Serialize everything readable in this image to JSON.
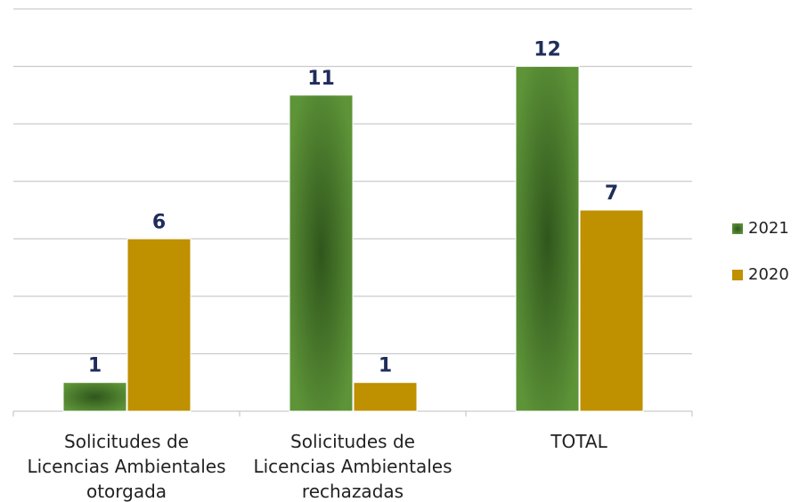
{
  "chart_data": {
    "type": "bar",
    "categories": [
      "Solicitudes de\nLicencias Ambientales\notorgada",
      "Solicitudes de\nLicencias Ambientales\nrechazadas",
      "TOTAL"
    ],
    "series": [
      {
        "name": "2021",
        "color": "#548235",
        "values": [
          1,
          11,
          12
        ]
      },
      {
        "name": "2020",
        "color": "#bf9000",
        "values": [
          6,
          1,
          7
        ]
      }
    ],
    "ylim": [
      0,
      14
    ],
    "yticks": [
      0,
      2,
      4,
      6,
      8,
      10,
      12,
      14
    ],
    "grid": true,
    "legend": "right"
  }
}
